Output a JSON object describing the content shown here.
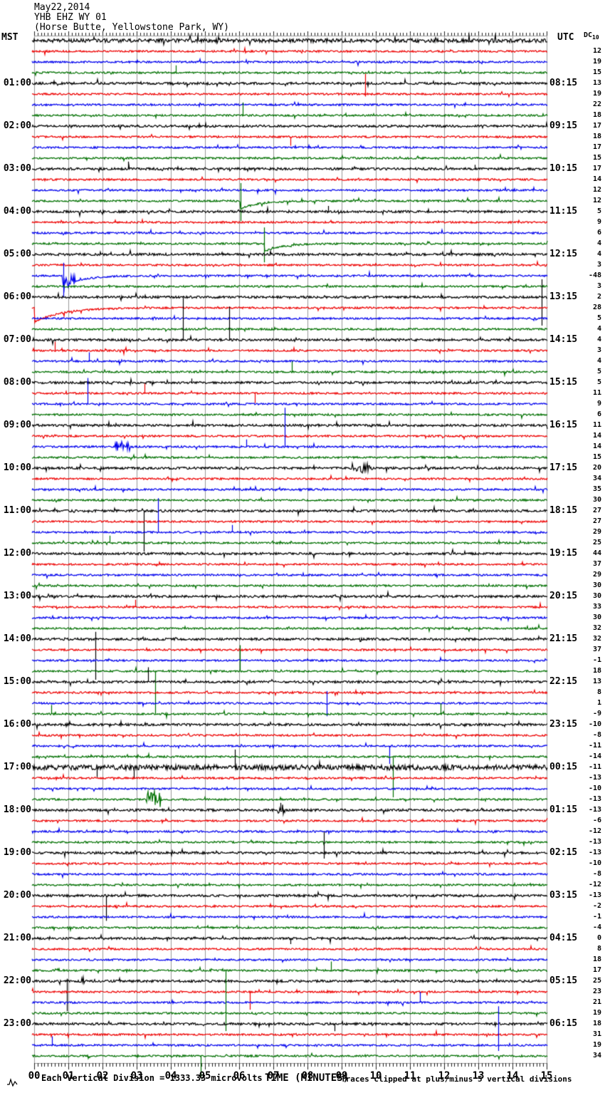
{
  "header": {
    "date": "May22,2014",
    "station": "YHB EHZ WY 01",
    "location": "(Horse Butte, Yellowstone Park, WY)"
  },
  "axes": {
    "left_timezone": "MST",
    "right_timezone": "UTC",
    "dc_header": "DC",
    "dc_header_sub": "10"
  },
  "footer": {
    "scale_note": "Each Vertical Division = 1333.33 microvolts",
    "x_title": "TIME (MINUTES)",
    "clip_note": "Traces clipped at plus/minus 5 vertical divisions"
  },
  "colors": {
    "black": "#000000",
    "red": "#ee0000",
    "blue": "#0000ee",
    "green": "#007000",
    "grid": "#999999",
    "tick": "#222222",
    "bg": "#ffffff"
  },
  "chart_data": {
    "type": "line",
    "subtype": "helicorder-seismogram",
    "title": "YHB EHZ WY 01 (Horse Butte, Yellowstone Park, WY) May22,2014",
    "xlabel": "TIME (MINUTES)",
    "x_axis": {
      "min": 0,
      "max": 15,
      "major_tick": 1,
      "minor_tick": 0.1,
      "labels": [
        "00",
        "01",
        "02",
        "03",
        "04",
        "05",
        "06",
        "07",
        "08",
        "09",
        "10",
        "11",
        "12",
        "13",
        "14",
        "15"
      ]
    },
    "minutes_per_line": 15,
    "vertical_division_microvolts": 1333.33,
    "clip_divisions": 5,
    "color_cycle": [
      "black",
      "red",
      "blue",
      "green"
    ],
    "traces": [
      {
        "t": "00:00",
        "noise": 1.6
      },
      {
        "t": "00:15",
        "dc": 12
      },
      {
        "t": "00:30",
        "dc": 19
      },
      {
        "t": "00:45",
        "dc": 15,
        "events": [
          {
            "m": 4.15,
            "u": 0.9
          }
        ]
      },
      {
        "t": "01:00",
        "mst": "01:00",
        "utc": "08:15",
        "dc": 13
      },
      {
        "t": "01:15",
        "dc": 19,
        "events": [
          {
            "m": 9.69,
            "u": 2.5,
            "d": 0.3
          }
        ]
      },
      {
        "t": "01:30",
        "dc": 22
      },
      {
        "t": "01:45",
        "dc": 18,
        "events": [
          {
            "m": 6.1,
            "u": 1.6
          }
        ]
      },
      {
        "t": "02:00",
        "mst": "02:00",
        "utc": "09:15",
        "dc": 17
      },
      {
        "t": "02:15",
        "dc": 18,
        "events": [
          {
            "m": 7.5,
            "d": 1.1
          }
        ]
      },
      {
        "t": "02:30",
        "dc": 17
      },
      {
        "t": "02:45",
        "dc": 15
      },
      {
        "t": "03:00",
        "mst": "03:00",
        "utc": "10:15",
        "dc": 17,
        "events": [
          {
            "m": 2.75,
            "u": 0.9
          },
          {
            "m": 12.9,
            "u": 0.5
          }
        ]
      },
      {
        "t": "03:15",
        "dc": 14
      },
      {
        "t": "03:30",
        "dc": 12
      },
      {
        "t": "03:45",
        "dc": 12,
        "events": [
          {
            "m": 6.04,
            "u": 2.2,
            "d": 2.5,
            "s": 1.0,
            "sw": 0.5
          }
        ]
      },
      {
        "t": "04:00",
        "mst": "04:00",
        "utc": "11:15",
        "dc": 5,
        "events": [
          {
            "m": 8.6,
            "u": 0.7
          }
        ]
      },
      {
        "t": "04:15",
        "dc": 9
      },
      {
        "t": "04:30",
        "dc": 6
      },
      {
        "t": "04:45",
        "dc": 4,
        "events": [
          {
            "m": 6.73,
            "u": 2.0,
            "d": 2.3,
            "s": 1.0,
            "sw": 0.5
          }
        ]
      },
      {
        "t": "05:00",
        "mst": "05:00",
        "utc": "12:15",
        "dc": 4
      },
      {
        "t": "05:15",
        "dc": 3
      },
      {
        "t": "05:30",
        "dc": -48,
        "events": [
          {
            "m": 0.85,
            "u": 1.6,
            "d": 2.6,
            "s": 1.2,
            "sw": 0.6
          },
          {
            "m": 0.95,
            "b": 0.8,
            "w": 0.25
          }
        ]
      },
      {
        "t": "05:45",
        "dc": 3
      },
      {
        "t": "06:00",
        "mst": "06:00",
        "utc": "13:15",
        "dc": 2,
        "events": [
          {
            "m": 14.85,
            "u": 2.2,
            "d": 3.5
          }
        ]
      },
      {
        "t": "06:15",
        "dc": 28,
        "events": [
          {
            "m": 0,
            "s": 1.8,
            "sw": 0.8
          }
        ]
      },
      {
        "t": "06:30",
        "dc": 5
      },
      {
        "t": "06:45",
        "dc": 4
      },
      {
        "t": "07:00",
        "mst": "07:00",
        "utc": "14:15",
        "dc": 4,
        "events": [
          {
            "m": 4.35,
            "u": 5.4
          },
          {
            "m": 5.7,
            "u": 4.1
          }
        ]
      },
      {
        "t": "07:15",
        "dc": 3,
        "events": [
          {
            "m": 0.6,
            "u": 1.1
          }
        ]
      },
      {
        "t": "07:30",
        "dc": 4,
        "events": [
          {
            "m": 1.6,
            "u": 1.1
          }
        ]
      },
      {
        "t": "07:45",
        "dc": 5,
        "events": [
          {
            "m": 7.54,
            "u": 1.3
          }
        ]
      },
      {
        "t": "08:00",
        "mst": "08:00",
        "utc": "15:15",
        "dc": 5,
        "events": [
          {
            "m": 4.6,
            "u": 0.5
          }
        ]
      },
      {
        "t": "08:15",
        "dc": 11,
        "events": [
          {
            "m": 3.23,
            "u": 1.2
          },
          {
            "m": 6.46,
            "d": 1.2
          }
        ]
      },
      {
        "t": "08:30",
        "dc": 9,
        "events": [
          {
            "m": 1.56,
            "u": 3.2
          }
        ]
      },
      {
        "t": "08:45",
        "dc": 6
      },
      {
        "t": "09:00",
        "mst": "09:00",
        "utc": "16:15",
        "dc": 11
      },
      {
        "t": "09:15",
        "dc": 14
      },
      {
        "t": "09:30",
        "dc": 14,
        "events": [
          {
            "m": 2.5,
            "b": 0.6,
            "w": 0.3
          },
          {
            "m": 6.2,
            "u": 0.9
          },
          {
            "m": 7.33,
            "u": 4.8
          }
        ]
      },
      {
        "t": "09:45",
        "dc": 15
      },
      {
        "t": "10:00",
        "mst": "10:00",
        "utc": "17:15",
        "dc": 20,
        "events": [
          {
            "m": 9.5,
            "b": 0.5,
            "w": 0.4
          }
        ]
      },
      {
        "t": "10:15",
        "dc": 34
      },
      {
        "t": "10:30",
        "dc": 35
      },
      {
        "t": "10:45",
        "dc": 30
      },
      {
        "t": "11:00",
        "mst": "11:00",
        "utc": "18:15",
        "dc": 27,
        "events": [
          {
            "m": 3.2,
            "d": 5.0
          }
        ]
      },
      {
        "t": "11:15",
        "dc": 27
      },
      {
        "t": "11:30",
        "dc": 29,
        "events": [
          {
            "m": 3.63,
            "u": 4.2
          },
          {
            "m": 5.8,
            "u": 0.9
          }
        ]
      },
      {
        "t": "11:45",
        "dc": 25,
        "events": [
          {
            "m": 2.2,
            "u": 0.9
          }
        ]
      },
      {
        "t": "12:00",
        "mst": "12:00",
        "utc": "19:15",
        "dc": 44
      },
      {
        "t": "12:15",
        "dc": 37
      },
      {
        "t": "12:30",
        "dc": 29
      },
      {
        "t": "12:45",
        "dc": 30
      },
      {
        "t": "13:00",
        "mst": "13:00",
        "utc": "20:15",
        "dc": 30
      },
      {
        "t": "13:15",
        "dc": 33,
        "events": [
          {
            "m": 2.96,
            "u": 0.9
          }
        ]
      },
      {
        "t": "13:30",
        "dc": 30
      },
      {
        "t": "13:45",
        "dc": 32
      },
      {
        "t": "14:00",
        "mst": "14:00",
        "utc": "21:15",
        "dc": 32,
        "events": [
          {
            "m": 1.79,
            "u": 0.9,
            "d": 5.0
          }
        ]
      },
      {
        "t": "14:15",
        "dc": 37
      },
      {
        "t": "14:30",
        "dc": -1
      },
      {
        "t": "14:45",
        "dc": 18,
        "events": [
          {
            "m": 3.54,
            "d": 5.3
          },
          {
            "m": 6.02,
            "u": 3.2
          }
        ]
      },
      {
        "t": "15:00",
        "mst": "15:00",
        "utc": "22:15",
        "dc": 13,
        "events": [
          {
            "m": 3.33,
            "u": 1.8
          }
        ]
      },
      {
        "t": "15:15",
        "dc": 8
      },
      {
        "t": "15:30",
        "dc": 1,
        "events": [
          {
            "m": 8.56,
            "u": 1.5,
            "d": 1.6
          }
        ]
      },
      {
        "t": "15:45",
        "dc": -9,
        "events": [
          {
            "m": 0.5,
            "u": 1.1
          },
          {
            "m": 11.9,
            "u": 1.3
          }
        ]
      },
      {
        "t": "16:00",
        "mst": "16:00",
        "utc": "23:15",
        "dc": -10
      },
      {
        "t": "16:15",
        "dc": -8
      },
      {
        "t": "16:30",
        "dc": -11,
        "events": [
          {
            "m": 10.4,
            "d": 2.2
          }
        ]
      },
      {
        "t": "16:45",
        "dc": -14,
        "events": [
          {
            "m": 10.5,
            "d": 5.0
          }
        ]
      },
      {
        "t": "17:00",
        "mst": "17:00",
        "utc": "00:15",
        "dc": -11,
        "noise": 2.2,
        "events": [
          {
            "m": 1.83,
            "d": 1.2
          },
          {
            "m": 2.92,
            "d": 1.4
          },
          {
            "m": 5.88,
            "u": 2.2
          }
        ]
      },
      {
        "t": "17:15",
        "dc": -13
      },
      {
        "t": "17:30",
        "dc": -10
      },
      {
        "t": "17:45",
        "dc": -13,
        "events": [
          {
            "m": 3.44,
            "b": 1.0,
            "w": 0.3
          }
        ]
      },
      {
        "t": "18:00",
        "mst": "18:00",
        "utc": "01:15",
        "dc": -13,
        "events": [
          {
            "m": 7.2,
            "u": 0.9,
            "b": 0.6,
            "w": 0.15
          }
        ]
      },
      {
        "t": "18:15",
        "dc": -6
      },
      {
        "t": "18:30",
        "dc": -12
      },
      {
        "t": "18:45",
        "dc": -13
      },
      {
        "t": "19:00",
        "mst": "19:00",
        "utc": "02:15",
        "dc": -13,
        "events": [
          {
            "m": 8.48,
            "u": 2.6,
            "d": 0.7
          }
        ]
      },
      {
        "t": "19:15",
        "dc": -10
      },
      {
        "t": "19:30",
        "dc": -8
      },
      {
        "t": "19:45",
        "dc": -12
      },
      {
        "t": "20:00",
        "mst": "20:00",
        "utc": "03:15",
        "dc": -13,
        "events": [
          {
            "m": 2.1,
            "d": 3.1
          }
        ]
      },
      {
        "t": "20:15",
        "dc": -2
      },
      {
        "t": "20:30",
        "dc": -1
      },
      {
        "t": "20:45",
        "dc": -4
      },
      {
        "t": "21:00",
        "mst": "21:00",
        "utc": "04:15",
        "dc": 0,
        "events": [
          {
            "m": 7.5,
            "d": 0.7
          }
        ]
      },
      {
        "t": "21:15",
        "dc": 8
      },
      {
        "t": "21:30",
        "dc": 18
      },
      {
        "t": "21:45",
        "dc": 17,
        "events": [
          {
            "m": 8.68,
            "u": 1.1
          }
        ]
      },
      {
        "t": "22:00",
        "mst": "22:00",
        "utc": "05:15",
        "dc": 25,
        "events": [
          {
            "m": 0.96,
            "u": 0.3,
            "d": 3.7
          }
        ]
      },
      {
        "t": "22:15",
        "dc": 23,
        "events": [
          {
            "m": 6.31,
            "d": 2.2
          }
        ]
      },
      {
        "t": "22:30",
        "dc": 21,
        "events": [
          {
            "m": 11.3,
            "u": 1.3
          }
        ]
      },
      {
        "t": "22:45",
        "dc": 19,
        "events": [
          {
            "m": 5.6,
            "u": 5.3,
            "d": 2.2
          }
        ]
      },
      {
        "t": "23:00",
        "mst": "23:00",
        "utc": "06:15",
        "dc": 18,
        "events": [
          {
            "m": 8.8,
            "d": 0.9
          }
        ]
      },
      {
        "t": "23:15",
        "dc": 31
      },
      {
        "t": "23:30",
        "dc": 19,
        "events": [
          {
            "m": 0.52,
            "u": 1.1
          },
          {
            "m": 13.58,
            "u": 4.8,
            "d": 0.7
          }
        ]
      },
      {
        "t": "23:45",
        "dc": 34,
        "events": [
          {
            "m": 4.88,
            "d": 2.6
          }
        ]
      }
    ]
  }
}
